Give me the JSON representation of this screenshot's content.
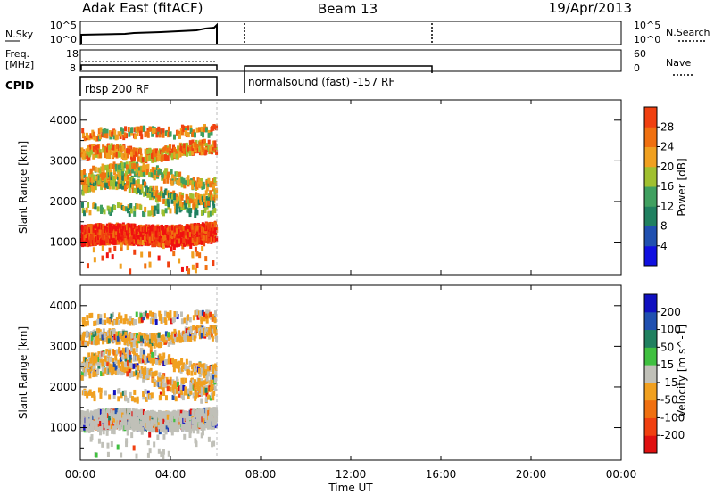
{
  "header": {
    "radar": "Adak East (fitACF)",
    "beam": "Beam 13",
    "date": "19/Apr/2013"
  },
  "panel_labels": {
    "nsky": "N.Sky",
    "nsky_hi": "10^5",
    "nsky_lo": "10^0",
    "nsky_r_hi": "10^5",
    "nsky_r_lo": "10^0",
    "nsearch": "N.Search",
    "freq": "Freq.",
    "freq_unit": "[MHz]",
    "freq_hi": "18",
    "freq_lo": "8",
    "nave_hi": "60",
    "nave_lo": "0",
    "nave": "Nave",
    "cpid": "CPID"
  },
  "cpid_labels": [
    "rbsp 200 RF",
    "normalsound (fast) -157 RF"
  ],
  "colors": {
    "power": [
      "#1010e0",
      "#2050b0",
      "#208060",
      "#40a060",
      "#a0c030",
      "#f0a020",
      "#f07010",
      "#f04010",
      "#f01010"
    ],
    "velocity": [
      "#e01010",
      "#f04010",
      "#f07010",
      "#f0a020",
      "#c0c0b8",
      "#40c040",
      "#208060",
      "#2050b0",
      "#1010c0"
    ]
  },
  "chart_data": [
    {
      "type": "heatmap",
      "ylabel": "Slant Range [km]",
      "ylim": [
        200,
        4500
      ],
      "yticks": [
        "1000",
        "2000",
        "3000",
        "4000"
      ],
      "x_range_hours": [
        0,
        24
      ],
      "data_extent_hours": [
        0,
        6
      ],
      "colorbar_label": "Power [dB]",
      "colorbar_ticks": [
        "4",
        "8",
        "12",
        "16",
        "20",
        "24",
        "28"
      ],
      "colorbar_range": [
        0,
        32
      ]
    },
    {
      "type": "heatmap",
      "ylabel": "Slant Range [km]",
      "ylim": [
        200,
        4500
      ],
      "yticks": [
        "1000",
        "2000",
        "3000",
        "4000"
      ],
      "x_range_hours": [
        0,
        24
      ],
      "data_extent_hours": [
        0,
        6
      ],
      "colorbar_label": "Velocity [m s^-1]",
      "colorbar_ticks": [
        "200",
        "100",
        "50",
        "15",
        "-15",
        "-50",
        "-100",
        "-200"
      ]
    }
  ],
  "xaxis": {
    "xlabel": "Time UT",
    "ticks": [
      "00:00",
      "04:00",
      "08:00",
      "12:00",
      "16:00",
      "20:00",
      "00:00"
    ]
  }
}
